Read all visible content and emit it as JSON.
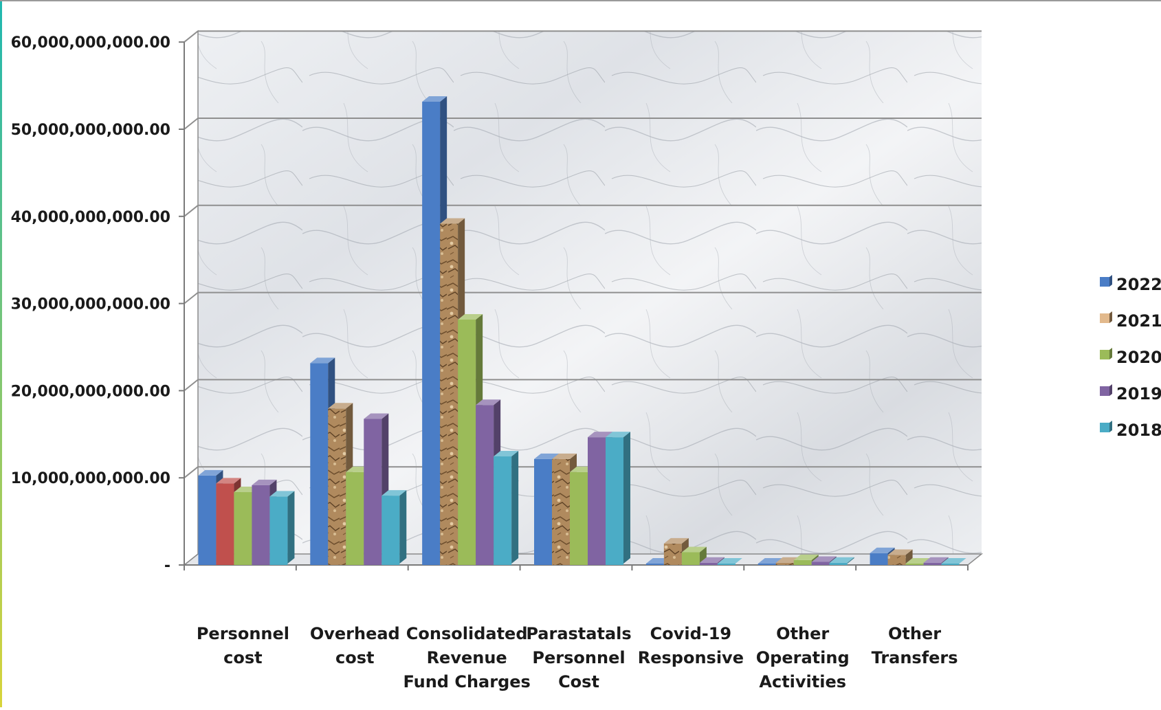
{
  "chart_data": {
    "type": "bar",
    "title": "",
    "xlabel": "",
    "ylabel": "",
    "ylim": [
      0,
      60000000000
    ],
    "yticks": [
      {
        "value": 0,
        "label": "-"
      },
      {
        "value": 10000000000,
        "label": "10,000,000,000.00"
      },
      {
        "value": 20000000000,
        "label": "20,000,000,000.00"
      },
      {
        "value": 30000000000,
        "label": "30,000,000,000.00"
      },
      {
        "value": 40000000000,
        "label": "40,000,000,000.00"
      },
      {
        "value": 50000000000,
        "label": "50,000,000,000.00"
      },
      {
        "value": 60000000000,
        "label": "60,000,000,000.00"
      }
    ],
    "categories": [
      [
        "Personnel",
        "cost"
      ],
      [
        "Overhead",
        "cost"
      ],
      [
        "Consolidated",
        "Revenue",
        "Fund Charges"
      ],
      [
        "Parastatals",
        "Personnel",
        "Cost"
      ],
      [
        "Covid-19",
        "Responsive"
      ],
      [
        "Other",
        "Operating",
        "Activities"
      ],
      [
        "Other",
        "Transfers"
      ]
    ],
    "series": [
      {
        "name": "2022",
        "color": "#4a7dc6",
        "values": [
          10100000000,
          23000000000,
          53000000000,
          12000000000,
          0,
          0,
          1200000000
        ]
      },
      {
        "name": "2021",
        "color": "#b08a5e",
        "values": [
          9200000000,
          17800000000,
          39000000000,
          12000000000,
          2300000000,
          100000000,
          1000000000
        ]
      },
      {
        "name": "2020",
        "color": "#9bbb59",
        "values": [
          8200000000,
          10500000000,
          28000000000,
          10500000000,
          1300000000,
          400000000,
          0
        ]
      },
      {
        "name": "2019",
        "color": "#8064a2",
        "values": [
          9000000000,
          16600000000,
          18200000000,
          14500000000,
          100000000,
          200000000,
          100000000
        ]
      },
      {
        "name": "2018",
        "color": "#4bacc6",
        "values": [
          7700000000,
          7800000000,
          12300000000,
          14500000000,
          0,
          100000000,
          0
        ]
      }
    ],
    "exceptions": [
      {
        "category": 0,
        "series": 1,
        "color": "#c0504d"
      }
    ],
    "grid": true,
    "legend": "right"
  }
}
